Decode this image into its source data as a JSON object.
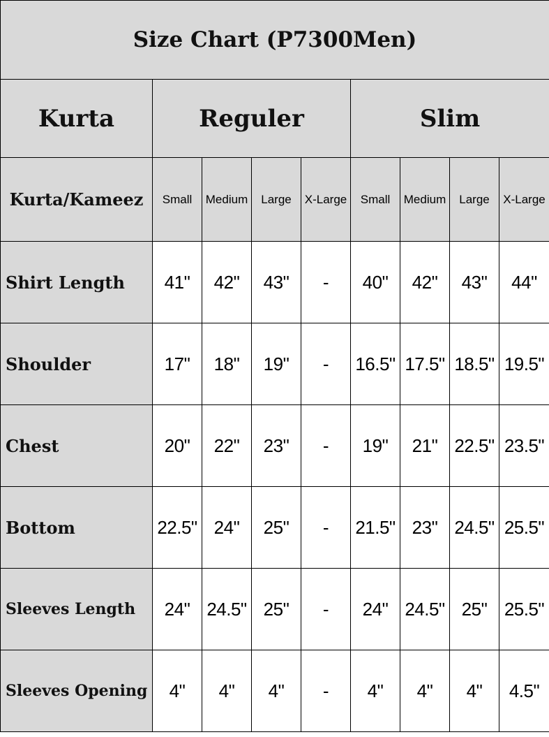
{
  "title": "Size Chart (P7300Men)",
  "header": {
    "kurta": "Kurta",
    "regular": "Reguler",
    "slim": "Slim"
  },
  "subheader": {
    "label": "Kurta/Kameez",
    "sizes": [
      "Small",
      "Medium",
      "Large",
      "X-Large",
      "Small",
      "Medium",
      "Large",
      "X-Large"
    ]
  },
  "rows": [
    {
      "label": "Shirt Length",
      "values": [
        "41\"",
        "42\"",
        "43\"",
        "-",
        "40\"",
        "42\"",
        "43\"",
        "44\""
      ]
    },
    {
      "label": "Shoulder",
      "values": [
        "17\"",
        "18\"",
        "19\"",
        "-",
        "16.5\"",
        "17.5\"",
        "18.5\"",
        "19.5\""
      ]
    },
    {
      "label": "Chest",
      "values": [
        "20\"",
        "22\"",
        "23\"",
        "-",
        "19\"",
        "21\"",
        "22.5\"",
        "23.5\""
      ]
    },
    {
      "label": "Bottom",
      "values": [
        "22.5\"",
        "24\"",
        "25\"",
        "-",
        "21.5\"",
        "23\"",
        "24.5\"",
        "25.5\""
      ]
    },
    {
      "label": "Sleeves Length",
      "values": [
        "24\"",
        "24.5\"",
        "25\"",
        "-",
        "24\"",
        "24.5\"",
        "25\"",
        "25.5\""
      ]
    },
    {
      "label": "Sleeves Opening",
      "values": [
        "4\"",
        "4\"",
        "4\"",
        "-",
        "4\"",
        "4\"",
        "4\"",
        "4.5\""
      ]
    }
  ],
  "colors": {
    "header_bg": "#d9d9d9",
    "cell_bg": "#ffffff",
    "border": "#000000"
  }
}
